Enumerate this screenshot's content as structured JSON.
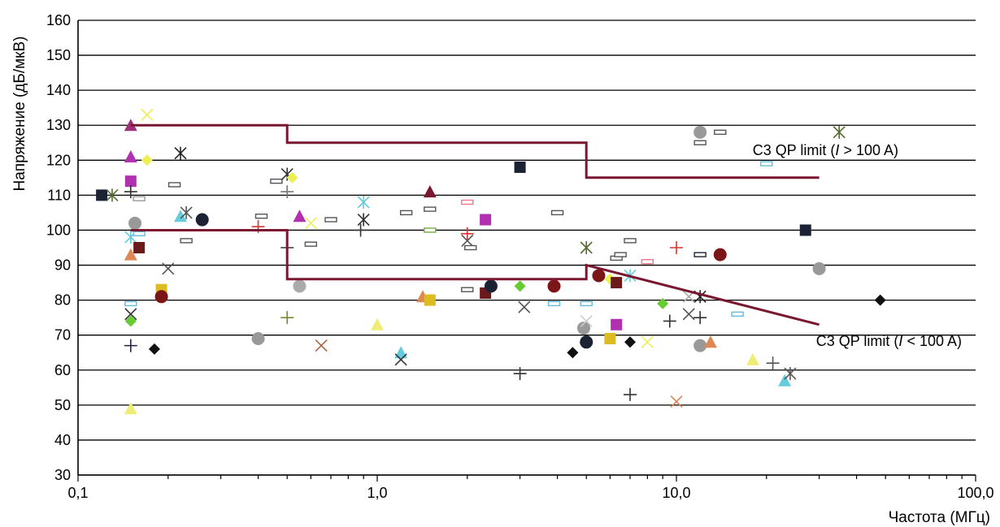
{
  "chart_data": {
    "type": "scatter",
    "xlabel": "Частота (МГц)",
    "ylabel": "Напряжение (дБ/мкВ)",
    "x_scale": "log",
    "xlim": [
      0.1,
      100
    ],
    "ylim": [
      30,
      160
    ],
    "x_ticks": [
      {
        "value": 0.1,
        "label": "0,1"
      },
      {
        "value": 1,
        "label": "1,0"
      },
      {
        "value": 10,
        "label": "10,0"
      },
      {
        "value": 100,
        "label": "100,0"
      }
    ],
    "y_ticks": [
      30,
      40,
      50,
      60,
      70,
      80,
      90,
      100,
      110,
      120,
      130,
      140,
      150,
      160
    ],
    "grid": "horizontal",
    "limit_lines": [
      {
        "label_parts": [
          "C3 QP limit (",
          "I",
          " > 100 A)"
        ],
        "color": "#7a1630",
        "points": [
          [
            0.15,
            130
          ],
          [
            0.5,
            130
          ],
          [
            0.5,
            125
          ],
          [
            5,
            125
          ],
          [
            5,
            115
          ],
          [
            30,
            115
          ]
        ]
      },
      {
        "label_parts": [
          "C3 QP limit (",
          "I",
          " < 100 A)"
        ],
        "color": "#7a1630",
        "points": [
          [
            0.15,
            100
          ],
          [
            0.5,
            100
          ],
          [
            0.5,
            86
          ],
          [
            5,
            86
          ],
          [
            5,
            90
          ],
          [
            30,
            73
          ]
        ]
      }
    ],
    "points": [
      {
        "x": 0.12,
        "y": 110,
        "marker": "square",
        "color": "#1a2233"
      },
      {
        "x": 0.13,
        "y": 110,
        "marker": "star",
        "color": "#556b2f"
      },
      {
        "x": 0.15,
        "y": 130,
        "marker": "triangle",
        "color": "#a0307a"
      },
      {
        "x": 0.15,
        "y": 121,
        "marker": "triangle",
        "color": "#b030b0"
      },
      {
        "x": 0.15,
        "y": 114,
        "marker": "square",
        "color": "#b030b0"
      },
      {
        "x": 0.15,
        "y": 111,
        "marker": "plus",
        "color": "#333333"
      },
      {
        "x": 0.155,
        "y": 102,
        "marker": "circle",
        "color": "#999999"
      },
      {
        "x": 0.15,
        "y": 98,
        "marker": "star",
        "color": "#66ccdd"
      },
      {
        "x": 0.16,
        "y": 95,
        "marker": "square",
        "color": "#6b1a1a"
      },
      {
        "x": 0.15,
        "y": 93,
        "marker": "triangle",
        "color": "#dd8855"
      },
      {
        "x": 0.15,
        "y": 79,
        "marker": "dash",
        "color": "#66bbdd"
      },
      {
        "x": 0.15,
        "y": 76,
        "marker": "x",
        "color": "#333333"
      },
      {
        "x": 0.15,
        "y": 74,
        "marker": "diamond",
        "color": "#66cc33"
      },
      {
        "x": 0.15,
        "y": 67,
        "marker": "plus",
        "color": "#222244"
      },
      {
        "x": 0.15,
        "y": 49,
        "marker": "triangle",
        "color": "#eeee77"
      },
      {
        "x": 0.17,
        "y": 133,
        "marker": "x",
        "color": "#eeee55"
      },
      {
        "x": 0.17,
        "y": 120,
        "marker": "diamond",
        "color": "#eeee55"
      },
      {
        "x": 0.16,
        "y": 109,
        "marker": "dash",
        "color": "#999999"
      },
      {
        "x": 0.16,
        "y": 99,
        "marker": "dash",
        "color": "#66bbdd"
      },
      {
        "x": 0.18,
        "y": 66,
        "marker": "diamond",
        "color": "#111111"
      },
      {
        "x": 0.19,
        "y": 83,
        "marker": "square",
        "color": "#ddbb22"
      },
      {
        "x": 0.19,
        "y": 81,
        "marker": "circle",
        "color": "#7a1616"
      },
      {
        "x": 0.2,
        "y": 89,
        "marker": "x",
        "color": "#555555"
      },
      {
        "x": 0.21,
        "y": 113,
        "marker": "dash",
        "color": "#555555"
      },
      {
        "x": 0.22,
        "y": 122,
        "marker": "star",
        "color": "#222222"
      },
      {
        "x": 0.22,
        "y": 104,
        "marker": "triangle",
        "color": "#66ccdd"
      },
      {
        "x": 0.23,
        "y": 105,
        "marker": "star",
        "color": "#555555"
      },
      {
        "x": 0.23,
        "y": 97,
        "marker": "dash",
        "color": "#555555"
      },
      {
        "x": 0.26,
        "y": 103,
        "marker": "circle",
        "color": "#1a2233"
      },
      {
        "x": 0.4,
        "y": 101,
        "marker": "plus",
        "color": "#dd3333"
      },
      {
        "x": 0.41,
        "y": 104,
        "marker": "dash",
        "color": "#555555"
      },
      {
        "x": 0.4,
        "y": 69,
        "marker": "circle",
        "color": "#999999"
      },
      {
        "x": 0.46,
        "y": 114,
        "marker": "dash",
        "color": "#555555"
      },
      {
        "x": 0.5,
        "y": 116,
        "marker": "star",
        "color": "#333333"
      },
      {
        "x": 0.52,
        "y": 115,
        "marker": "diamond",
        "color": "#eeee55"
      },
      {
        "x": 0.5,
        "y": 111,
        "marker": "plus",
        "color": "#777777"
      },
      {
        "x": 0.5,
        "y": 95,
        "marker": "plus",
        "color": "#333333"
      },
      {
        "x": 0.5,
        "y": 75,
        "marker": "plus",
        "color": "#778833"
      },
      {
        "x": 0.55,
        "y": 104,
        "marker": "triangle",
        "color": "#b030b0"
      },
      {
        "x": 0.55,
        "y": 84,
        "marker": "circle",
        "color": "#aaaaaa"
      },
      {
        "x": 0.6,
        "y": 102,
        "marker": "x",
        "color": "#eeee55"
      },
      {
        "x": 0.6,
        "y": 96,
        "marker": "dash",
        "color": "#555555"
      },
      {
        "x": 0.65,
        "y": 67,
        "marker": "x",
        "color": "#aa6644"
      },
      {
        "x": 0.7,
        "y": 103,
        "marker": "dash",
        "color": "#555555"
      },
      {
        "x": 0.9,
        "y": 108,
        "marker": "star",
        "color": "#66ccdd"
      },
      {
        "x": 0.9,
        "y": 103,
        "marker": "star",
        "color": "#333333"
      },
      {
        "x": 0.88,
        "y": 100,
        "marker": "plus",
        "color": "#333333"
      },
      {
        "x": 1.0,
        "y": 73,
        "marker": "triangle",
        "color": "#eeee77"
      },
      {
        "x": 1.2,
        "y": 65,
        "marker": "triangle",
        "color": "#66ccdd"
      },
      {
        "x": 1.2,
        "y": 63,
        "marker": "x",
        "color": "#333333"
      },
      {
        "x": 1.25,
        "y": 105,
        "marker": "dash",
        "color": "#555555"
      },
      {
        "x": 1.5,
        "y": 111,
        "marker": "triangle",
        "color": "#7a1630"
      },
      {
        "x": 1.5,
        "y": 106,
        "marker": "dash",
        "color": "#555555"
      },
      {
        "x": 1.5,
        "y": 100,
        "marker": "dash",
        "color": "#77aa44"
      },
      {
        "x": 1.42,
        "y": 81,
        "marker": "triangle",
        "color": "#dd8855"
      },
      {
        "x": 1.5,
        "y": 80,
        "marker": "square",
        "color": "#ddbb22"
      },
      {
        "x": 2.0,
        "y": 108,
        "marker": "dash",
        "color": "#ee7788"
      },
      {
        "x": 2.0,
        "y": 99,
        "marker": "plus",
        "color": "#dd3333"
      },
      {
        "x": 2.0,
        "y": 97,
        "marker": "x",
        "color": "#555555"
      },
      {
        "x": 2.05,
        "y": 95,
        "marker": "dash",
        "color": "#555555"
      },
      {
        "x": 2.0,
        "y": 83,
        "marker": "dash",
        "color": "#555555"
      },
      {
        "x": 2.3,
        "y": 103,
        "marker": "square",
        "color": "#b030b0"
      },
      {
        "x": 2.3,
        "y": 82,
        "marker": "square",
        "color": "#6b1a1a"
      },
      {
        "x": 2.4,
        "y": 84,
        "marker": "circle",
        "color": "#1a2233"
      },
      {
        "x": 3.0,
        "y": 118,
        "marker": "square",
        "color": "#1a2233"
      },
      {
        "x": 3.0,
        "y": 84,
        "marker": "diamond",
        "color": "#66cc33"
      },
      {
        "x": 3.1,
        "y": 78,
        "marker": "x",
        "color": "#555555"
      },
      {
        "x": 3.0,
        "y": 59,
        "marker": "plus",
        "color": "#333333"
      },
      {
        "x": 4.0,
        "y": 105,
        "marker": "dash",
        "color": "#555555"
      },
      {
        "x": 3.9,
        "y": 84,
        "marker": "circle",
        "color": "#7a1616"
      },
      {
        "x": 3.9,
        "y": 79,
        "marker": "dash",
        "color": "#66bbdd"
      },
      {
        "x": 4.5,
        "y": 65,
        "marker": "diamond",
        "color": "#111111"
      },
      {
        "x": 5.0,
        "y": 95,
        "marker": "star",
        "color": "#556b2f"
      },
      {
        "x": 5.0,
        "y": 79,
        "marker": "dash",
        "color": "#66bbdd"
      },
      {
        "x": 4.9,
        "y": 72,
        "marker": "circle",
        "color": "#999999"
      },
      {
        "x": 5.0,
        "y": 74,
        "marker": "x",
        "color": "#cccccc"
      },
      {
        "x": 5.0,
        "y": 68,
        "marker": "circle",
        "color": "#1a2233"
      },
      {
        "x": 5.5,
        "y": 87,
        "marker": "circle",
        "color": "#7a1616"
      },
      {
        "x": 6.0,
        "y": 86,
        "marker": "diamond",
        "color": "#eeee55"
      },
      {
        "x": 6.3,
        "y": 85,
        "marker": "square",
        "color": "#6b1a1a"
      },
      {
        "x": 6.0,
        "y": 69,
        "marker": "square",
        "color": "#ddbb22"
      },
      {
        "x": 6.3,
        "y": 73,
        "marker": "square",
        "color": "#b030b0"
      },
      {
        "x": 6.3,
        "y": 92,
        "marker": "dash",
        "color": "#555555"
      },
      {
        "x": 6.5,
        "y": 93,
        "marker": "dash",
        "color": "#555555"
      },
      {
        "x": 7.0,
        "y": 97,
        "marker": "dash",
        "color": "#555555"
      },
      {
        "x": 7.0,
        "y": 87,
        "marker": "star",
        "color": "#66ccdd"
      },
      {
        "x": 7.0,
        "y": 68,
        "marker": "diamond",
        "color": "#111111"
      },
      {
        "x": 7.0,
        "y": 53,
        "marker": "plus",
        "color": "#333333"
      },
      {
        "x": 8.0,
        "y": 68,
        "marker": "x",
        "color": "#eeee55"
      },
      {
        "x": 8.0,
        "y": 91,
        "marker": "dash",
        "color": "#ee7788"
      },
      {
        "x": 9.0,
        "y": 79,
        "marker": "diamond",
        "color": "#66cc33"
      },
      {
        "x": 9.5,
        "y": 74,
        "marker": "plus",
        "color": "#333333"
      },
      {
        "x": 10.0,
        "y": 95,
        "marker": "plus",
        "color": "#dd3333"
      },
      {
        "x": 10.0,
        "y": 51,
        "marker": "x",
        "color": "#dd8855"
      },
      {
        "x": 11.0,
        "y": 76,
        "marker": "x",
        "color": "#555555"
      },
      {
        "x": 11.0,
        "y": 81,
        "marker": "x",
        "color": "#aaaaaa"
      },
      {
        "x": 12.0,
        "y": 81,
        "marker": "star",
        "color": "#222222"
      },
      {
        "x": 12.0,
        "y": 75,
        "marker": "plus",
        "color": "#333333"
      },
      {
        "x": 12.0,
        "y": 93,
        "marker": "dash",
        "color": "#1a2233"
      },
      {
        "x": 12.0,
        "y": 128,
        "marker": "circle",
        "color": "#999999"
      },
      {
        "x": 12.0,
        "y": 125,
        "marker": "dash",
        "color": "#555555"
      },
      {
        "x": 12.0,
        "y": 67,
        "marker": "circle",
        "color": "#999999"
      },
      {
        "x": 13.0,
        "y": 68,
        "marker": "triangle",
        "color": "#dd8855"
      },
      {
        "x": 14.0,
        "y": 128,
        "marker": "dash",
        "color": "#555555"
      },
      {
        "x": 14.0,
        "y": 93,
        "marker": "circle",
        "color": "#7a1616"
      },
      {
        "x": 16.0,
        "y": 76,
        "marker": "dash",
        "color": "#66bbdd"
      },
      {
        "x": 18.0,
        "y": 63,
        "marker": "triangle",
        "color": "#eeee77"
      },
      {
        "x": 20.0,
        "y": 119,
        "marker": "dash",
        "color": "#66bbdd"
      },
      {
        "x": 21.0,
        "y": 62,
        "marker": "plus",
        "color": "#555555"
      },
      {
        "x": 23.0,
        "y": 57,
        "marker": "triangle",
        "color": "#66ccdd"
      },
      {
        "x": 24.0,
        "y": 59,
        "marker": "star",
        "color": "#555555"
      },
      {
        "x": 27.0,
        "y": 100,
        "marker": "square",
        "color": "#1a2233"
      },
      {
        "x": 30.0,
        "y": 89,
        "marker": "circle",
        "color": "#999999"
      },
      {
        "x": 35.0,
        "y": 128,
        "marker": "star",
        "color": "#556b2f"
      },
      {
        "x": 48.0,
        "y": 80,
        "marker": "diamond",
        "color": "#111111"
      }
    ]
  }
}
